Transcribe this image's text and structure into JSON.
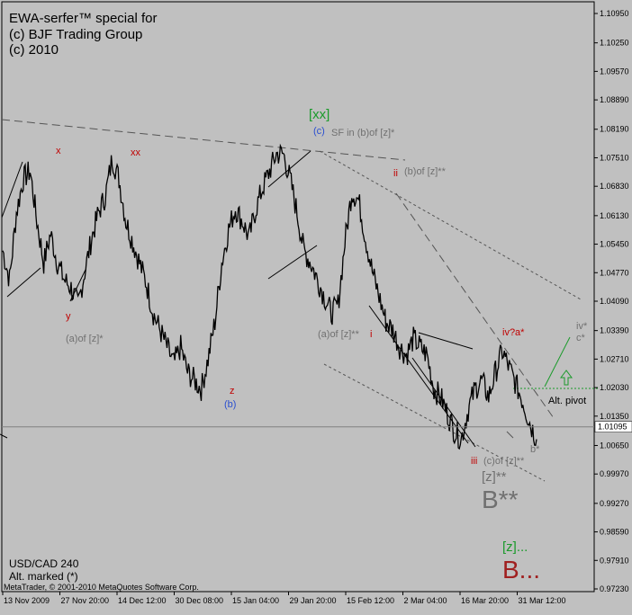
{
  "header": {
    "line1": "EWA-serfer™ special for",
    "line2": "(c) BJF Trading Group",
    "line3": "(c) 2010"
  },
  "footer": {
    "symbol": "USD/CAD 240",
    "note": "Alt. marked (*)",
    "copyright": "MetaTrader, © 2001-2010 MetaQuotes Software Corp."
  },
  "colors": {
    "background": "#c0c0c0",
    "price_line": "#000000",
    "current_price_line": "#808080",
    "label_red": "#c00000",
    "label_gray": "#707070",
    "label_green": "#1a9a2a",
    "label_blue": "#2a4fd0",
    "alt_pivot_line": "#1a9a2a"
  },
  "chart_data": {
    "type": "line",
    "title": "USD/CAD 240",
    "y_ticks": [
      "1.10950",
      "1.10250",
      "1.09570",
      "1.08890",
      "1.08190",
      "1.07510",
      "1.06830",
      "1.06130",
      "1.05450",
      "1.04770",
      "1.04090",
      "1.03390",
      "1.02710",
      "1.02030",
      "1.01350",
      "1.00650",
      "0.99970",
      "0.99270",
      "0.98590",
      "0.97910",
      "0.97230"
    ],
    "ylim": [
      0.9723,
      1.1095
    ],
    "x_ticks": [
      "13 Nov 2009",
      "27 Nov 20:00",
      "14 Dec 12:00",
      "30 Dec 08:00",
      "15 Jan 04:00",
      "29 Jan 20:00",
      "15 Feb 12:00",
      "2 Mar 04:00",
      "16 Mar 20:00",
      "31 Mar 12:00"
    ],
    "current_price": "1.01095",
    "current_value": 1.01095,
    "grid": false,
    "series": [
      {
        "values": [
          1.053,
          1.046,
          1.062,
          1.07,
          1.072,
          1.06,
          1.05,
          1.057,
          1.05,
          1.046,
          1.044,
          1.04,
          1.048,
          1.056,
          1.062,
          1.066,
          1.075,
          1.07,
          1.06,
          1.055,
          1.05,
          1.045,
          1.038,
          1.034,
          1.03,
          1.026,
          1.03,
          1.024,
          1.022,
          1.02,
          1.027,
          1.036,
          1.05,
          1.058,
          1.063,
          1.06,
          1.056,
          1.063,
          1.068,
          1.072,
          1.076,
          1.076,
          1.07,
          1.062,
          1.053,
          1.05,
          1.046,
          1.042,
          1.038,
          1.04,
          1.055,
          1.067,
          1.065,
          1.056,
          1.048,
          1.042,
          1.036,
          1.034,
          1.03,
          1.028,
          1.032,
          1.03,
          1.028,
          1.02,
          1.018,
          1.014,
          1.01,
          1.008,
          1.015,
          1.02,
          1.022,
          1.018,
          1.024,
          1.029,
          1.025,
          1.021,
          1.017,
          1.012,
          1.008
        ]
      }
    ]
  },
  "wave_labels": {
    "x": "x",
    "xx": "xx",
    "y": "y",
    "a_of_z_star": "(a)of [z]*",
    "z": "z",
    "b_blue_low": "(b)",
    "xx_green": "[xx]",
    "c_blue": "(c)",
    "sf_in": "SF in (b)of [z]*",
    "ii": "ii",
    "b_of_z2": "(b)of [z]**",
    "a_of_z2": "(a)of [z]**",
    "i": "i",
    "iv": "iv?a*",
    "iv_star": "iv*",
    "c_star": "c*",
    "alt_pivot": "Alt. pivot",
    "b_star": "b*",
    "iii": "iii",
    "c_of_z2": "(c)of [z]**",
    "z_bracket2": "[z]**",
    "big_b2": "B**",
    "z_green": "[z]...",
    "big_b": "B..."
  }
}
